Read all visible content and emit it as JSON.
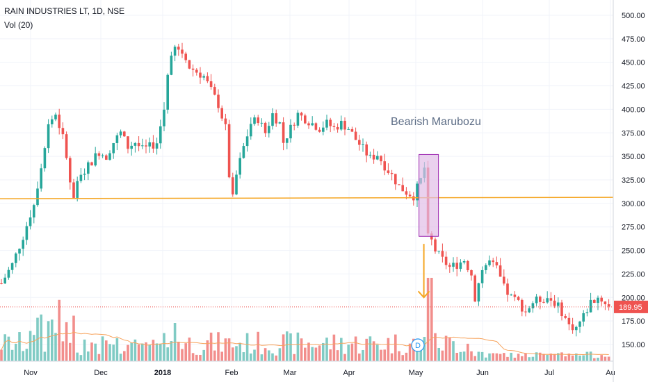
{
  "header": {
    "symbol_line": "RAIN INDUSTRIES LT, 1D, NSE",
    "indicator_line": "Vol (20)"
  },
  "colors": {
    "up": "#26a69a",
    "down": "#ef5350",
    "vol_up": "#80cbc4",
    "vol_down": "#f28e8c",
    "vol_ma": "#f7a35c",
    "support": "#f5a623",
    "box_fill": "#e1bee7",
    "box_stroke": "#9c27b0",
    "arrow": "#f5a623",
    "price_tag": "#ef5350",
    "grid": "#f0f3fa"
  },
  "chart_data": {
    "type": "candlestick",
    "title": "RAIN INDUSTRIES LT, 1D, NSE",
    "indicator": "Vol (20)",
    "y_ticks": [
      "500.00",
      "475.00",
      "450.00",
      "425.00",
      "400.00",
      "375.00",
      "350.00",
      "325.00",
      "300.00",
      "275.00",
      "250.00",
      "225.00",
      "200.00",
      "175.00",
      "150.00"
    ],
    "y_range": [
      130,
      510
    ],
    "x_ticks": [
      "Nov",
      "Dec",
      "2018",
      "Feb",
      "Mar",
      "Apr",
      "May",
      "Jun",
      "Jul",
      "Au"
    ],
    "last_price": "189.95",
    "support_level": 305,
    "annotation": {
      "text": "Bearish Marubozu",
      "box_price_range": [
        265,
        352
      ],
      "arrow_from_price": 257,
      "arrow_to_price": 200
    },
    "event_marker": "D",
    "grid": true,
    "series": [
      {
        "values": [
          {
            "t": 0,
            "p": 215
          },
          {
            "t": 3,
            "p": 235
          },
          {
            "t": 6,
            "p": 265
          },
          {
            "t": 9,
            "p": 300
          },
          {
            "t": 11,
            "p": 340
          },
          {
            "t": 13,
            "p": 385
          },
          {
            "t": 15,
            "p": 395
          },
          {
            "t": 17,
            "p": 370
          },
          {
            "t": 18,
            "p": 350
          },
          {
            "t": 19,
            "p": 320
          },
          {
            "t": 20,
            "p": 305
          },
          {
            "t": 21,
            "p": 320
          },
          {
            "t": 23,
            "p": 335
          },
          {
            "t": 25,
            "p": 345
          },
          {
            "t": 27,
            "p": 355
          },
          {
            "t": 29,
            "p": 350
          },
          {
            "t": 31,
            "p": 365
          },
          {
            "t": 33,
            "p": 375
          },
          {
            "t": 35,
            "p": 360
          },
          {
            "t": 37,
            "p": 365
          },
          {
            "t": 39,
            "p": 357
          },
          {
            "t": 41,
            "p": 360
          },
          {
            "t": 43,
            "p": 365
          },
          {
            "t": 45,
            "p": 400
          },
          {
            "t": 46,
            "p": 440
          },
          {
            "t": 48,
            "p": 465
          },
          {
            "t": 50,
            "p": 460
          },
          {
            "t": 52,
            "p": 445
          },
          {
            "t": 54,
            "p": 440
          },
          {
            "t": 56,
            "p": 435
          },
          {
            "t": 58,
            "p": 420
          },
          {
            "t": 60,
            "p": 405
          },
          {
            "t": 62,
            "p": 380
          },
          {
            "t": 63,
            "p": 330
          },
          {
            "t": 64,
            "p": 305
          },
          {
            "t": 65,
            "p": 330
          },
          {
            "t": 67,
            "p": 360
          },
          {
            "t": 69,
            "p": 385
          },
          {
            "t": 71,
            "p": 390
          },
          {
            "t": 73,
            "p": 375
          },
          {
            "t": 75,
            "p": 395
          },
          {
            "t": 77,
            "p": 385
          },
          {
            "t": 78,
            "p": 365
          },
          {
            "t": 80,
            "p": 380
          },
          {
            "t": 82,
            "p": 395
          },
          {
            "t": 84,
            "p": 390
          },
          {
            "t": 86,
            "p": 385
          },
          {
            "t": 88,
            "p": 380
          },
          {
            "t": 90,
            "p": 385
          },
          {
            "t": 92,
            "p": 380
          },
          {
            "t": 94,
            "p": 385
          },
          {
            "t": 96,
            "p": 380
          },
          {
            "t": 98,
            "p": 368
          },
          {
            "t": 100,
            "p": 358
          },
          {
            "t": 102,
            "p": 348
          },
          {
            "t": 104,
            "p": 352
          },
          {
            "t": 106,
            "p": 340
          },
          {
            "t": 108,
            "p": 330
          },
          {
            "t": 110,
            "p": 318
          },
          {
            "t": 112,
            "p": 312
          },
          {
            "t": 114,
            "p": 308
          },
          {
            "t": 116,
            "p": 325
          },
          {
            "t": 117,
            "p": 338
          },
          {
            "t": 118,
            "p": 270
          },
          {
            "t": 120,
            "p": 250
          },
          {
            "t": 122,
            "p": 240
          },
          {
            "t": 124,
            "p": 232
          },
          {
            "t": 126,
            "p": 235
          },
          {
            "t": 128,
            "p": 240
          },
          {
            "t": 130,
            "p": 225
          },
          {
            "t": 131,
            "p": 200
          },
          {
            "t": 133,
            "p": 230
          },
          {
            "t": 135,
            "p": 238
          },
          {
            "t": 137,
            "p": 230
          },
          {
            "t": 139,
            "p": 210
          },
          {
            "t": 141,
            "p": 200
          },
          {
            "t": 143,
            "p": 195
          },
          {
            "t": 145,
            "p": 185
          },
          {
            "t": 147,
            "p": 195
          },
          {
            "t": 149,
            "p": 198
          },
          {
            "t": 151,
            "p": 200
          },
          {
            "t": 153,
            "p": 195
          },
          {
            "t": 155,
            "p": 185
          },
          {
            "t": 157,
            "p": 170
          },
          {
            "t": 159,
            "p": 168
          },
          {
            "t": 161,
            "p": 180
          },
          {
            "t": 163,
            "p": 195
          },
          {
            "t": 165,
            "p": 200
          },
          {
            "t": 167,
            "p": 195
          },
          {
            "t": 168,
            "p": 190
          }
        ]
      }
    ]
  }
}
